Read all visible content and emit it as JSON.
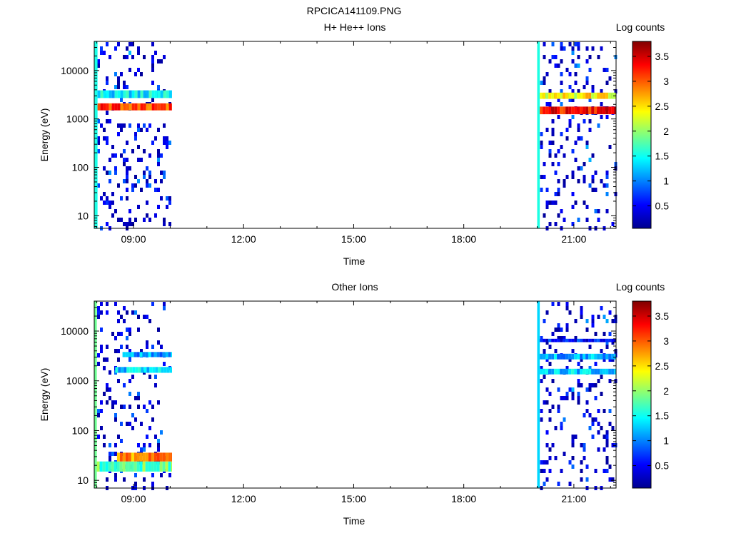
{
  "figure_title": "RPCICA141109.PNG",
  "chart_data": [
    {
      "type": "heatmap",
      "title": "H+ He++ Ions",
      "xlabel": "Time",
      "ylabel": "Energy (eV)",
      "x_ticks": [
        "09:00",
        "12:00",
        "15:00",
        "18:00",
        "21:00"
      ],
      "x_tick_hours": [
        9,
        12,
        15,
        18,
        21
      ],
      "xlim_hours": [
        7.93,
        22.15
      ],
      "y_ticks": [
        "10",
        "100",
        "1000",
        "10000"
      ],
      "y_tick_values": [
        10,
        100,
        1000,
        10000
      ],
      "ylim": [
        5.5,
        40000
      ],
      "y_scale": "log",
      "grid": false,
      "colorbar": {
        "label": "Log counts",
        "ticks": [
          "0.5",
          "1",
          "1.5",
          "2",
          "2.5",
          "3",
          "3.5"
        ],
        "tick_values": [
          0.5,
          1,
          1.5,
          2,
          2.5,
          3,
          3.5
        ],
        "range": [
          0.05,
          3.8
        ],
        "colormap": "jet"
      },
      "data_segments_hours": [
        [
          7.93,
          10.05
        ],
        [
          20.0,
          22.15
        ]
      ],
      "bands": [
        {
          "start": 7.93,
          "end": 8.02,
          "e_min": 5.5,
          "e_max": 40000,
          "level": 1.6
        },
        {
          "start": 8.02,
          "end": 10.05,
          "e_min": 1500,
          "e_max": 2100,
          "level": 3.1
        },
        {
          "start": 8.02,
          "end": 10.05,
          "e_min": 2700,
          "e_max": 3900,
          "level": 1.4
        },
        {
          "start": 20.0,
          "end": 20.07,
          "e_min": 5.5,
          "e_max": 40000,
          "level": 1.4
        },
        {
          "start": 20.07,
          "end": 22.15,
          "e_min": 1250,
          "e_max": 1800,
          "level": 3.3
        },
        {
          "start": 20.07,
          "end": 22.15,
          "e_min": 2600,
          "e_max": 3500,
          "level": 2.4
        }
      ]
    },
    {
      "type": "heatmap",
      "title": "Other Ions",
      "xlabel": "Time",
      "ylabel": "Energy (eV)",
      "x_ticks": [
        "09:00",
        "12:00",
        "15:00",
        "18:00",
        "21:00"
      ],
      "x_tick_hours": [
        9,
        12,
        15,
        18,
        21
      ],
      "xlim_hours": [
        7.93,
        22.15
      ],
      "y_ticks": [
        "10",
        "100",
        "1000",
        "10000"
      ],
      "y_tick_values": [
        10,
        100,
        1000,
        10000
      ],
      "ylim": [
        7,
        40000
      ],
      "y_scale": "log",
      "grid": false,
      "colorbar": {
        "label": "Log counts",
        "ticks": [
          "0.5",
          "1",
          "1.5",
          "2",
          "2.5",
          "3",
          "3.5"
        ],
        "tick_values": [
          0.5,
          1,
          1.5,
          2,
          2.5,
          3,
          3.5
        ],
        "range": [
          0.05,
          3.8
        ],
        "colormap": "jet"
      },
      "data_segments_hours": [
        [
          7.93,
          10.05
        ],
        [
          20.0,
          22.15
        ]
      ],
      "bands": [
        {
          "start": 7.93,
          "end": 8.0,
          "e_min": 7,
          "e_max": 40000,
          "level": 1.6
        },
        {
          "start": 8.0,
          "end": 10.05,
          "e_min": 15,
          "e_max": 24,
          "level": 1.8
        },
        {
          "start": 8.55,
          "end": 10.05,
          "e_min": 24,
          "e_max": 36,
          "level": 2.8
        },
        {
          "start": 8.7,
          "end": 10.05,
          "e_min": 3000,
          "e_max": 3800,
          "level": 1.1
        },
        {
          "start": 8.5,
          "end": 10.05,
          "e_min": 1450,
          "e_max": 1900,
          "level": 1.3
        },
        {
          "start": 20.0,
          "end": 20.07,
          "e_min": 7,
          "e_max": 40000,
          "level": 1.3
        },
        {
          "start": 20.07,
          "end": 22.15,
          "e_min": 6000,
          "e_max": 7000,
          "level": 0.6
        },
        {
          "start": 20.07,
          "end": 22.15,
          "e_min": 2700,
          "e_max": 3500,
          "level": 1.2
        },
        {
          "start": 20.07,
          "end": 22.15,
          "e_min": 1350,
          "e_max": 1750,
          "level": 1.3
        }
      ]
    }
  ]
}
